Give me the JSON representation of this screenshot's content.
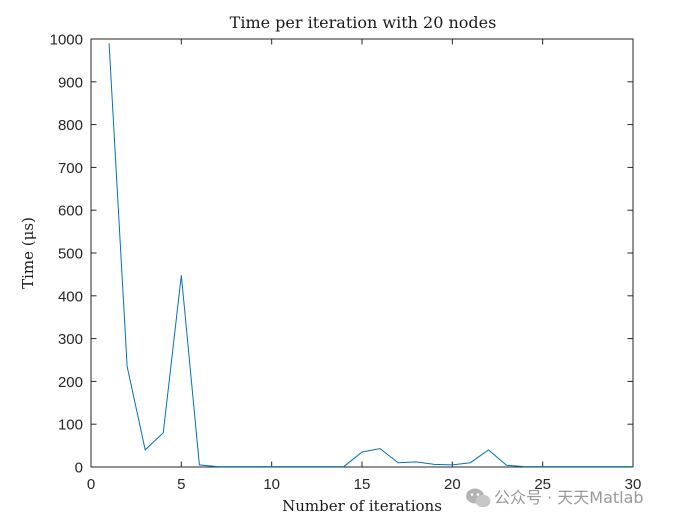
{
  "chart_data": {
    "type": "line",
    "title": "Time per iteration with 20 nodes",
    "xlabel": "Number of iterations",
    "ylabel": "Time (μs)",
    "xlim": [
      0,
      30
    ],
    "ylim": [
      0,
      1000
    ],
    "xticks": [
      0,
      5,
      10,
      15,
      20,
      25,
      30
    ],
    "yticks": [
      0,
      100,
      200,
      300,
      400,
      500,
      600,
      700,
      800,
      900,
      1000
    ],
    "grid": false,
    "series": [
      {
        "color": "#0072BD",
        "x": [
          1,
          2,
          3,
          4,
          5,
          6,
          7,
          8,
          9,
          10,
          11,
          12,
          13,
          14,
          15,
          16,
          17,
          18,
          19,
          20,
          21,
          22,
          23,
          24,
          25,
          26,
          27,
          28,
          29,
          30
        ],
        "y": [
          990,
          235,
          40,
          80,
          448,
          5,
          1,
          1,
          1,
          1,
          1,
          1,
          1,
          1,
          35,
          43,
          10,
          12,
          6,
          5,
          10,
          40,
          4,
          1,
          1,
          1,
          1,
          1,
          1,
          1
        ]
      }
    ]
  },
  "watermark": {
    "text": "公众号 · 天天Matlab",
    "icon": "wechat-icon"
  }
}
